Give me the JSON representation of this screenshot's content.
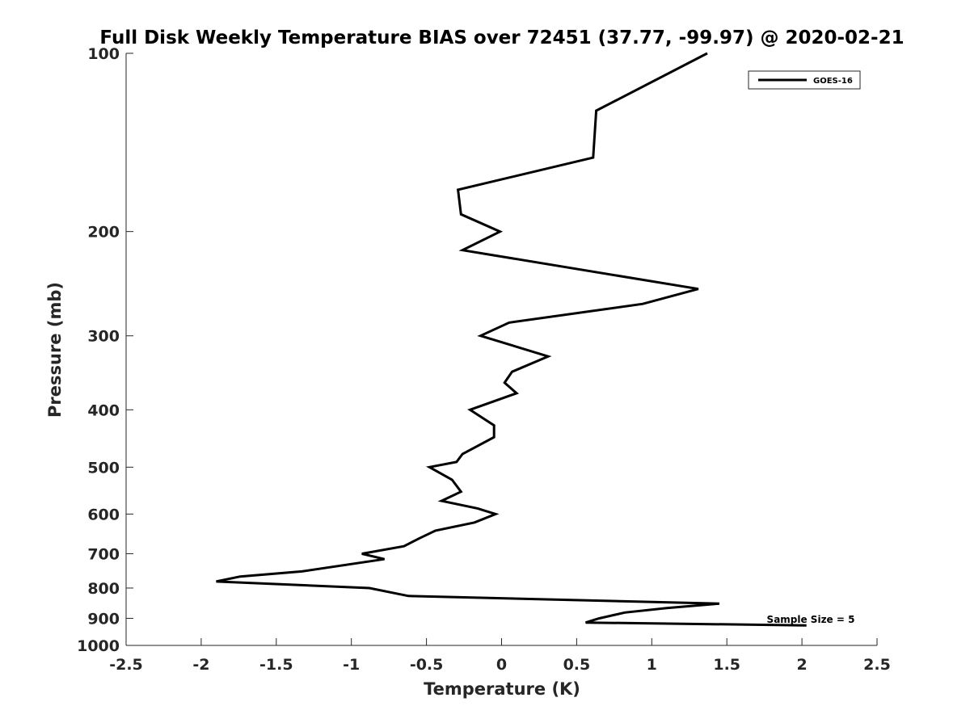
{
  "chart_data": {
    "type": "line",
    "title": "Full Disk Weekly Temperature BIAS over 72451 (37.77, -99.97) @ 2020-02-21",
    "xlabel": "Temperature (K)",
    "ylabel": "Pressure (mb)",
    "xlim": [
      -2.5,
      2.5
    ],
    "ylim": [
      100,
      1000
    ],
    "y_scale": "log",
    "y_reversed": true,
    "x_ticks": [
      -2.5,
      -2,
      -1.5,
      -1,
      -0.5,
      0,
      0.5,
      1,
      1.5,
      2,
      2.5
    ],
    "x_tick_labels": [
      "-2.5",
      "-2",
      "-1.5",
      "-1",
      "-0.5",
      "0",
      "0.5",
      "1",
      "1.5",
      "2",
      "2.5"
    ],
    "y_ticks": [
      100,
      200,
      300,
      400,
      500,
      600,
      700,
      800,
      900,
      1000
    ],
    "y_tick_labels": [
      "100",
      "200",
      "300",
      "400",
      "500",
      "600",
      "700",
      "800",
      "900",
      "1000"
    ],
    "grid": false,
    "legend_position": "top-right",
    "series": [
      {
        "name": "GOES-16",
        "color": "#000000",
        "points": [
          [
            1.37,
            100
          ],
          [
            0.63,
            125
          ],
          [
            0.61,
            150
          ],
          [
            -0.29,
            170
          ],
          [
            -0.27,
            187
          ],
          [
            -0.01,
            200
          ],
          [
            -0.26,
            215
          ],
          [
            1.31,
            250
          ],
          [
            0.94,
            265
          ],
          [
            0.05,
            285
          ],
          [
            -0.14,
            300
          ],
          [
            0.31,
            325
          ],
          [
            0.07,
            345
          ],
          [
            0.02,
            360
          ],
          [
            0.1,
            375
          ],
          [
            -0.21,
            400
          ],
          [
            -0.05,
            425
          ],
          [
            -0.05,
            445
          ],
          [
            -0.26,
            475
          ],
          [
            -0.3,
            490
          ],
          [
            -0.48,
            500
          ],
          [
            -0.33,
            525
          ],
          [
            -0.27,
            550
          ],
          [
            -0.4,
            570
          ],
          [
            -0.16,
            587
          ],
          [
            -0.04,
            600
          ],
          [
            -0.18,
            620
          ],
          [
            -0.44,
            640
          ],
          [
            -0.55,
            660
          ],
          [
            -0.65,
            680
          ],
          [
            -0.93,
            700
          ],
          [
            -0.78,
            715
          ],
          [
            -1.33,
            750
          ],
          [
            -1.74,
            765
          ],
          [
            -1.9,
            780
          ],
          [
            -0.88,
            800
          ],
          [
            -0.62,
            825
          ],
          [
            1.45,
            850
          ],
          [
            1.1,
            865
          ],
          [
            0.82,
            880
          ],
          [
            0.65,
            900
          ],
          [
            0.56,
            915
          ],
          [
            2.03,
            925
          ]
        ]
      }
    ],
    "annotations": [
      "Sample Size = 5"
    ]
  }
}
